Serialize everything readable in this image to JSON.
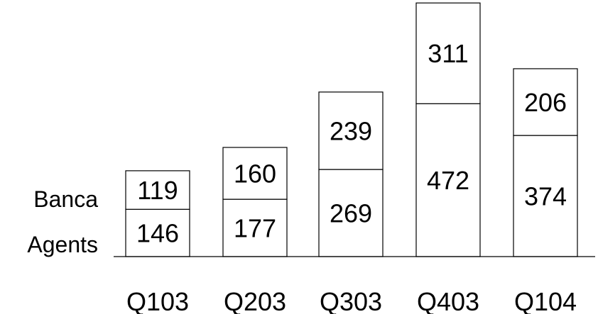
{
  "chart_data": {
    "type": "bar",
    "stacked": true,
    "categories": [
      "Q103",
      "Q203",
      "Q303",
      "Q403",
      "Q104"
    ],
    "series": [
      {
        "name": "Agents",
        "values": [
          146,
          177,
          269,
          472,
          374
        ]
      },
      {
        "name": "Banca",
        "values": [
          119,
          160,
          239,
          311,
          206
        ]
      }
    ],
    "title": "",
    "xlabel": "",
    "ylabel": "",
    "colors": {
      "bar_fill": "#ffffff",
      "bar_stroke": "#000000",
      "text": "#000000"
    },
    "grid": false,
    "legend": "left"
  }
}
